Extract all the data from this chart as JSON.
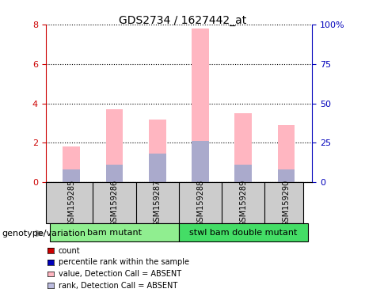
{
  "title": "GDS2734 / 1627442_at",
  "samples": [
    "GSM159285",
    "GSM159286",
    "GSM159287",
    "GSM159288",
    "GSM159289",
    "GSM159290"
  ],
  "pink_values": [
    1.8,
    3.7,
    3.2,
    7.8,
    3.5,
    2.9
  ],
  "blue_values": [
    8.0,
    11.0,
    18.0,
    26.0,
    11.0,
    8.0
  ],
  "ylim_left": [
    0,
    8
  ],
  "ylim_right": [
    0,
    100
  ],
  "yticks_left": [
    0,
    2,
    4,
    6,
    8
  ],
  "ytick_labels_left": [
    "0",
    "2",
    "4",
    "6",
    "8"
  ],
  "yticks_right": [
    0,
    25,
    50,
    75,
    100
  ],
  "ytick_labels_right": [
    "0",
    "25",
    "50",
    "75",
    "100%"
  ],
  "groups": [
    {
      "label": "bam mutant",
      "samples": [
        0,
        1,
        2
      ],
      "color": "#90EE90"
    },
    {
      "label": "stwl bam double mutant",
      "samples": [
        3,
        4,
        5
      ],
      "color": "#44DD66"
    }
  ],
  "genotype_label": "genotype/variation",
  "legend_items": [
    {
      "color": "#CC0000",
      "label": "count"
    },
    {
      "color": "#0000BB",
      "label": "percentile rank within the sample"
    },
    {
      "color": "#FFB6C1",
      "label": "value, Detection Call = ABSENT"
    },
    {
      "color": "#BBBBDD",
      "label": "rank, Detection Call = ABSENT"
    }
  ],
  "bar_width": 0.4,
  "pink_color": "#FFB6C1",
  "blue_color": "#AAAACC",
  "left_axis_color": "#CC0000",
  "right_axis_color": "#0000BB",
  "background_color": "#FFFFFF",
  "sample_box_color": "#CCCCCC"
}
